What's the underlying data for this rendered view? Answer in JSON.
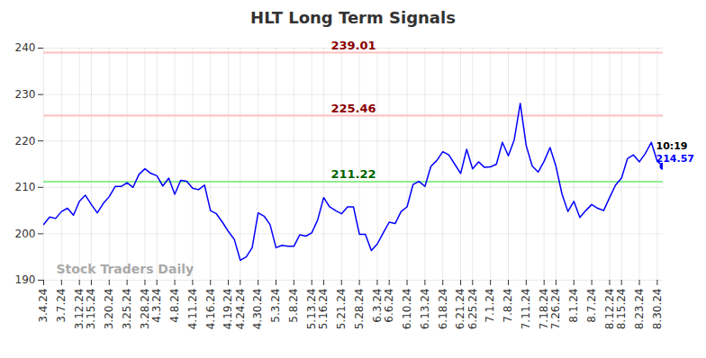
{
  "chart_data": {
    "type": "line",
    "title": "HLT Long Term Signals",
    "color": "#0000ff",
    "grid": true,
    "ylim": [
      190,
      240
    ],
    "yticks": [
      190,
      200,
      210,
      220,
      230,
      240
    ],
    "categories": [
      "3.4.24",
      null,
      null,
      "3.7.24",
      null,
      null,
      "3.12.24",
      null,
      "3.15.24",
      null,
      null,
      "3.20.24",
      null,
      null,
      "3.25.24",
      null,
      null,
      "3.28.24",
      null,
      "4.3.24",
      null,
      null,
      "4.8.24",
      null,
      null,
      "4.11.24",
      null,
      null,
      "4.16.24",
      null,
      null,
      "4.19.24",
      null,
      "4.24.24",
      null,
      null,
      "4.30.24",
      null,
      null,
      "5.3.24",
      null,
      null,
      "5.8.24",
      null,
      null,
      "5.13.24",
      null,
      "5.16.24",
      null,
      null,
      "5.21.24",
      null,
      null,
      "5.28.24",
      null,
      null,
      "6.3.24",
      null,
      "6.6.24",
      null,
      null,
      "6.10.24",
      null,
      null,
      "6.13.24",
      null,
      null,
      "6.18.24",
      null,
      null,
      "6.21.24",
      null,
      "6.25.24",
      null,
      null,
      "7.1.24",
      null,
      null,
      "7.8.24",
      null,
      null,
      "7.11.24",
      null,
      null,
      "7.18.24",
      null,
      "7.26.24",
      null,
      null,
      "8.1.24",
      null,
      null,
      "8.7.24",
      null,
      null,
      "8.12.24",
      null,
      "8.15.24",
      null,
      null,
      "8.23.24",
      null,
      null,
      "8.30.24",
      null
    ],
    "values": [
      202,
      203.6,
      203.3,
      204.8,
      205.5,
      204,
      207,
      208.3,
      206.3,
      204.5,
      206.5,
      208,
      210.2,
      210.2,
      211,
      210,
      212.8,
      214,
      213,
      212.5,
      210.3,
      212,
      208.5,
      211.5,
      211.3,
      209.8,
      209.5,
      210.5,
      205,
      204.3,
      202.5,
      200.5,
      198.8,
      194.3,
      195,
      197,
      204.5,
      203.8,
      202,
      197,
      197.5,
      197.3,
      197.3,
      199.8,
      199.5,
      200.2,
      203,
      207.8,
      205.8,
      205,
      204.3,
      205.8,
      205.8,
      199.9,
      199.9,
      196.4,
      197.8,
      200.2,
      202.5,
      202.2,
      204.8,
      205.8,
      210.6,
      211.3,
      210.2,
      214.5,
      215.8,
      217.7,
      217,
      215,
      213,
      218.2,
      214,
      215.5,
      214.3,
      214.4,
      215,
      219.7,
      216.8,
      220.3,
      228.1,
      219,
      214.6,
      213.3,
      215.6,
      218.6,
      214.5,
      208.6,
      204.8,
      207,
      203.5,
      205,
      206.3,
      205.5,
      205,
      207.8,
      210.5,
      212,
      216.2,
      217,
      215.5,
      217.3,
      219.7,
      215.6,
      214.57
    ],
    "reference_lines": [
      {
        "value": 239.01,
        "color": "#ffc0c0",
        "text_color": "#8b0000"
      },
      {
        "value": 225.46,
        "color": "#ffc0c0",
        "text_color": "#8b0000"
      },
      {
        "value": 211.22,
        "color": "#90ee90",
        "text_color": "#006400"
      }
    ],
    "last_point": {
      "time_label": "10:19",
      "time_color": "#000000",
      "value_color": "#0000ff"
    },
    "watermark": "Stock Traders Daily"
  }
}
